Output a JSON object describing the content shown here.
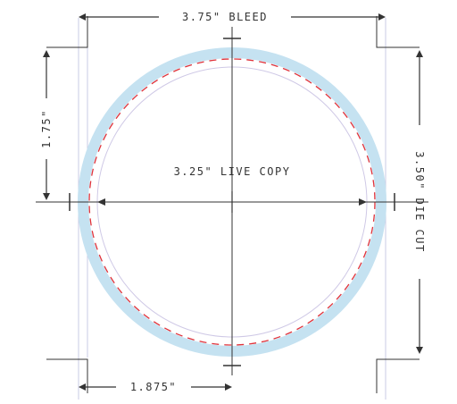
{
  "labels": {
    "bleed": "3.75\" BLEED",
    "height_half": "1.75\"",
    "die_cut": "3.50\" DIE CUT",
    "live_copy": "3.25\" LIVE COPY",
    "width_half": "1.875\""
  },
  "colors": {
    "bleed_ring": "#c5e2f1",
    "die_cut_line": "#e0323a",
    "live_copy_ring": "#cfc9e6",
    "guide_lines": "#c8cbe4",
    "dimension_lines": "#333333",
    "crop_marks": "#333333"
  }
}
